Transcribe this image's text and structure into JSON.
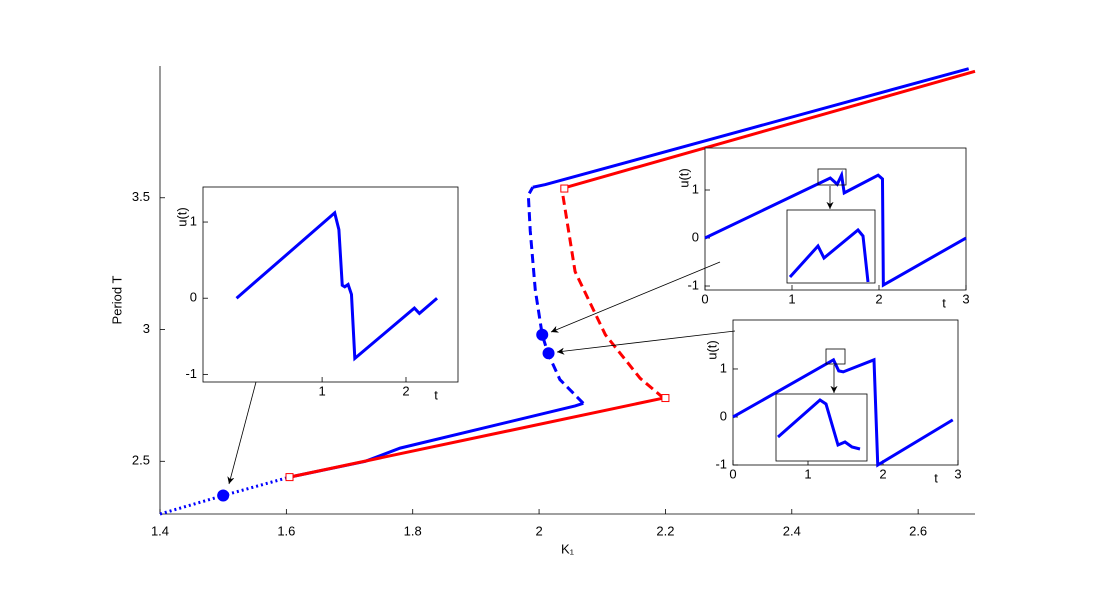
{
  "chart_data": [
    {
      "type": "line",
      "xlabel": "K₁",
      "ylabel": "Period T",
      "xlim": [
        1.4,
        2.69
      ],
      "ylim": [
        2.3,
        4.0
      ],
      "xticks": [
        1.4,
        1.6,
        1.8,
        2,
        2.2,
        2.4,
        2.6
      ],
      "yticks": [
        2.5,
        3,
        3.5
      ],
      "series": [
        {
          "color": "#0000ff",
          "linestyle": "dotted",
          "x": [
            1.4,
            1.5,
            1.605
          ],
          "values": [
            2.3,
            2.37,
            2.44
          ]
        },
        {
          "color": "#0000ff",
          "linestyle": "solid",
          "x": [
            1.605,
            1.725,
            1.78,
            2.057,
            2.07
          ],
          "values": [
            2.44,
            2.5,
            2.55,
            2.71,
            2.72
          ]
        },
        {
          "color": "#0000ff",
          "linestyle": "dashed",
          "x": [
            2.07,
            2.033,
            2.014,
            2.005,
            1.994,
            1.986,
            1.983,
            1.99
          ],
          "values": [
            2.72,
            2.81,
            2.91,
            2.98,
            3.15,
            3.375,
            3.51,
            3.54
          ]
        },
        {
          "color": "#0000ff",
          "linestyle": "solid",
          "x": [
            1.99,
            2.01,
            2.68
          ],
          "values": [
            3.54,
            3.55,
            3.99
          ]
        },
        {
          "color": "#ff0000",
          "linestyle": "solid",
          "x": [
            1.605,
            2.197
          ],
          "values": [
            2.44,
            2.74
          ]
        },
        {
          "color": "#ff0000",
          "linestyle": "dashed",
          "x": [
            2.197,
            2.16,
            2.105,
            2.057,
            2.036
          ],
          "values": [
            2.74,
            2.815,
            2.98,
            3.22,
            3.535
          ]
        },
        {
          "color": "#ff0000",
          "linestyle": "solid",
          "x": [
            2.036,
            2.69
          ],
          "values": [
            3.535,
            3.98
          ]
        },
        {
          "color": "#0000ff",
          "linestyle": "none",
          "marker": "circle",
          "x": [
            1.5,
            2.005,
            2.015
          ],
          "values": [
            2.37,
            2.98,
            2.91
          ]
        },
        {
          "color": "#ff0000",
          "linestyle": "none",
          "marker": "square",
          "x": [
            1.605,
            2.2,
            2.04
          ],
          "values": [
            2.44,
            2.74,
            3.535
          ]
        }
      ]
    },
    {
      "type": "line",
      "xlabel": "t",
      "ylabel": "u(t)",
      "xlim": [
        -0.42,
        2.62
      ],
      "ylim": [
        -1.1,
        1.46
      ],
      "xticks": [
        1,
        2
      ],
      "yticks": [
        -1,
        0,
        1
      ],
      "series": [
        {
          "color": "#0000ff",
          "linestyle": "solid",
          "x": [
            -0.02,
            1.15,
            1.2,
            1.24,
            1.27,
            1.31,
            1.35,
            1.39,
            2.1,
            2.16,
            2.37
          ],
          "values": [
            0,
            1.12,
            0.9,
            0.17,
            0.15,
            0.18,
            0.05,
            -0.79,
            -0.13,
            -0.2,
            0
          ]
        }
      ]
    },
    {
      "type": "line",
      "xlabel": "t",
      "ylabel": "u(t)",
      "xlim": [
        0,
        3
      ],
      "ylim": [
        -1.083,
        1.875
      ],
      "xticks": [
        0,
        1,
        2,
        3
      ],
      "yticks": [
        -1,
        0,
        1
      ],
      "series": [
        {
          "color": "#0000ff",
          "linestyle": "solid",
          "x": [
            0,
            1.44,
            1.52,
            1.57,
            1.6,
            1.99,
            2.04,
            2.05,
            3
          ],
          "values": [
            0,
            1.25,
            1.12,
            1.31,
            0.94,
            1.31,
            1.23,
            -0.98,
            0
          ]
        }
      ]
    },
    {
      "type": "line",
      "xlabel": "t",
      "ylabel": "u(t)",
      "xlim": [
        0,
        3
      ],
      "ylim": [
        -1,
        2.02
      ],
      "xticks": [
        0,
        1,
        2,
        3
      ],
      "yticks": [
        -1,
        0,
        1
      ],
      "series": [
        {
          "color": "#0000ff",
          "linestyle": "solid",
          "x": [
            0,
            1.34,
            1.41,
            1.47,
            1.88,
            1.93,
            2.93
          ],
          "values": [
            0,
            1.19,
            0.96,
            0.94,
            1.19,
            -1,
            -0.06
          ]
        }
      ]
    }
  ]
}
